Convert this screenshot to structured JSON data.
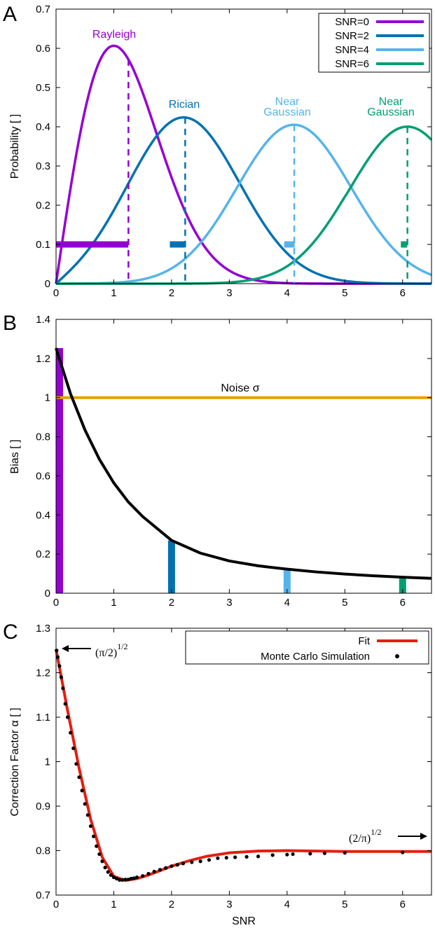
{
  "chart_data": [
    {
      "panel": "A",
      "type": "line",
      "ylabel": "Probability [ ]",
      "xlim": [
        0,
        6.5
      ],
      "ylim": [
        0,
        0.7
      ],
      "xticks": [
        "0",
        "1",
        "2",
        "3",
        "4",
        "5",
        "6"
      ],
      "yticks": [
        "0",
        "0.1",
        "0.2",
        "0.3",
        "0.4",
        "0.5",
        "0.6",
        "0.7"
      ],
      "grid": false,
      "legend_position": "top-right",
      "series": [
        {
          "name": "SNR=0",
          "snr": 0,
          "color": "#9400d3",
          "mean": 1.2533,
          "bias_bar": [
            0,
            1.25
          ]
        },
        {
          "name": "SNR=2",
          "snr": 2,
          "color": "#0072b2",
          "mean": 2.2359,
          "bias_bar": [
            1.97,
            2.24
          ]
        },
        {
          "name": "SNR=4",
          "snr": 4,
          "color": "#56b4e9",
          "mean": 4.1247,
          "bias_bar": [
            3.95,
            4.13
          ]
        },
        {
          "name": "SNR=6",
          "snr": 6,
          "color": "#009e73",
          "mean": 6.0833,
          "bias_bar": [
            5.97,
            6.08
          ]
        }
      ],
      "bias_bar_y": 0.1,
      "annotations": [
        {
          "text": "Rayleigh",
          "color": "#9400d3"
        },
        {
          "text": "Rician",
          "color": "#0072b2"
        },
        {
          "text": "Near",
          "color": "#56b4e9"
        },
        {
          "text": "Gaussian",
          "color": "#56b4e9"
        },
        {
          "text": "Near",
          "color": "#009e73"
        },
        {
          "text": "Gaussian",
          "color": "#009e73"
        }
      ]
    },
    {
      "panel": "B",
      "type": "line",
      "ylabel": "Bias [ ]",
      "xlim": [
        0,
        6.5
      ],
      "ylim": [
        0,
        1.4
      ],
      "xticks": [
        "0",
        "1",
        "2",
        "3",
        "4",
        "5",
        "6"
      ],
      "yticks": [
        "0",
        "0.2",
        "0.4",
        "0.6",
        "0.8",
        "1",
        "1.2",
        "1.4"
      ],
      "grid": false,
      "series": [
        {
          "name": "Bias",
          "color": "#000000",
          "x": [
            0,
            0.25,
            0.5,
            0.75,
            1,
            1.25,
            1.5,
            2,
            2.5,
            3,
            3.5,
            4,
            4.5,
            5,
            5.5,
            6,
            6.5
          ],
          "y": [
            1.253,
            1.02,
            0.835,
            0.685,
            0.564,
            0.467,
            0.392,
            0.27,
            0.205,
            0.165,
            0.14,
            0.123,
            0.109,
            0.098,
            0.089,
            0.082,
            0.076
          ]
        },
        {
          "name": "Noise σ",
          "color": "#e69f00",
          "value": 1.0
        }
      ],
      "bars": [
        {
          "snr": 0,
          "value": 1.253,
          "color": "#9400d3"
        },
        {
          "snr": 2,
          "value": 0.27,
          "color": "#0072b2"
        },
        {
          "snr": 4,
          "value": 0.125,
          "color": "#56b4e9"
        },
        {
          "snr": 6,
          "value": 0.083,
          "color": "#009e73"
        }
      ],
      "annotations": [
        {
          "text": "Noise σ"
        }
      ]
    },
    {
      "panel": "C",
      "type": "scatter",
      "xlabel": "SNR",
      "ylabel": "Correction Factor α [ ]",
      "xlim": [
        0,
        6.5
      ],
      "ylim": [
        0.7,
        1.3
      ],
      "xticks": [
        "0",
        "1",
        "2",
        "3",
        "4",
        "5",
        "6"
      ],
      "yticks": [
        "0.7",
        "0.8",
        "0.9",
        "1",
        "1.1",
        "1.2",
        "1.3"
      ],
      "grid": false,
      "legend_position": "top-right",
      "legend": [
        "Fit",
        "Monte Carlo Simulation"
      ],
      "series": [
        {
          "name": "Fit",
          "color": "#e51e10",
          "x": [
            0,
            0.2,
            0.4,
            0.6,
            0.8,
            1.0,
            1.2,
            1.4,
            1.6,
            1.8,
            2.0,
            2.3,
            2.6,
            3.0,
            3.5,
            4.0,
            4.5,
            5.0,
            5.5,
            6.0,
            6.5
          ],
          "y": [
            1.253,
            1.115,
            0.985,
            0.87,
            0.785,
            0.742,
            0.733,
            0.737,
            0.745,
            0.755,
            0.765,
            0.777,
            0.787,
            0.795,
            0.799,
            0.8,
            0.799,
            0.798,
            0.798,
            0.798,
            0.798
          ]
        },
        {
          "name": "Monte Carlo Simulation",
          "color": "#000000",
          "x": [
            0.01,
            0.03,
            0.06,
            0.09,
            0.12,
            0.16,
            0.2,
            0.25,
            0.3,
            0.35,
            0.4,
            0.45,
            0.5,
            0.55,
            0.6,
            0.65,
            0.7,
            0.75,
            0.8,
            0.85,
            0.9,
            0.95,
            1.0,
            1.05,
            1.1,
            1.15,
            1.2,
            1.25,
            1.3,
            1.35,
            1.4,
            1.5,
            1.6,
            1.7,
            1.8,
            1.9,
            2.0,
            2.1,
            2.2,
            2.35,
            2.5,
            2.65,
            2.8,
            2.95,
            3.1,
            3.3,
            3.5,
            3.75,
            4.0,
            4.1,
            4.4,
            4.65,
            5.0,
            6.0
          ],
          "y": [
            1.25,
            1.235,
            1.215,
            1.19,
            1.165,
            1.13,
            1.1,
            1.065,
            1.03,
            0.995,
            0.965,
            0.935,
            0.905,
            0.88,
            0.855,
            0.832,
            0.81,
            0.792,
            0.776,
            0.762,
            0.752,
            0.745,
            0.74,
            0.737,
            0.734,
            0.734,
            0.735,
            0.735,
            0.737,
            0.738,
            0.74,
            0.743,
            0.748,
            0.753,
            0.757,
            0.761,
            0.765,
            0.768,
            0.771,
            0.774,
            0.776,
            0.779,
            0.783,
            0.784,
            0.785,
            0.786,
            0.787,
            0.79,
            0.791,
            0.792,
            0.793,
            0.794,
            0.795,
            0.796
          ]
        }
      ],
      "annotations": [
        {
          "base": "(π/2)",
          "exp": "1/2",
          "value": 1.2533
        },
        {
          "base": "(2/π)",
          "exp": "1/2",
          "value": 0.7979
        }
      ]
    }
  ],
  "panel_letters": [
    "A",
    "B",
    "C"
  ]
}
